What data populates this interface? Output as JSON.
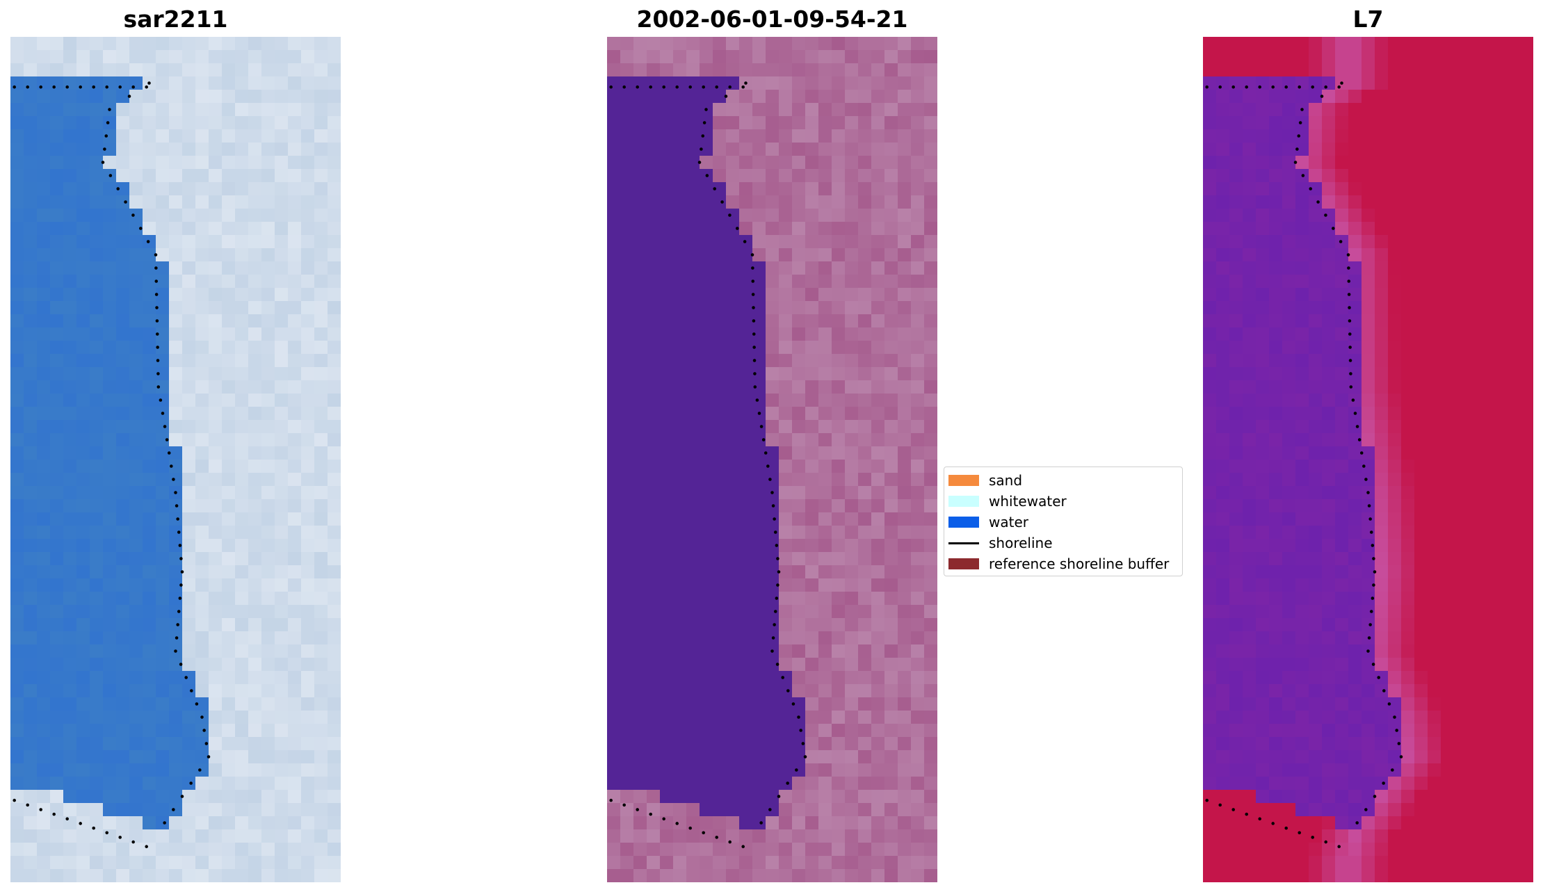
{
  "panels": [
    {
      "title": "sar2211"
    },
    {
      "title": "2002-06-01-09-54-21"
    },
    {
      "title": "L7"
    }
  ],
  "legend": {
    "items": [
      {
        "label": "sand",
        "color": "#f58a3d",
        "kind": "patch"
      },
      {
        "label": "whitewater",
        "color": "#c9ffff",
        "kind": "patch"
      },
      {
        "label": "water",
        "color": "#0b5ee8",
        "kind": "patch"
      },
      {
        "label": "shoreline",
        "color": "#000000",
        "kind": "line"
      },
      {
        "label": "reference shoreline buffer",
        "color": "#8c2a2e",
        "kind": "patch"
      }
    ]
  },
  "colors": {
    "rgb_water": "#3a7cc8",
    "rgb_land": "#c4d4e6",
    "class_water": "#542496",
    "class_land": "#a65c8e",
    "ndwi_water": "#7a24a8",
    "ndwi_land": "#c4154a"
  }
}
